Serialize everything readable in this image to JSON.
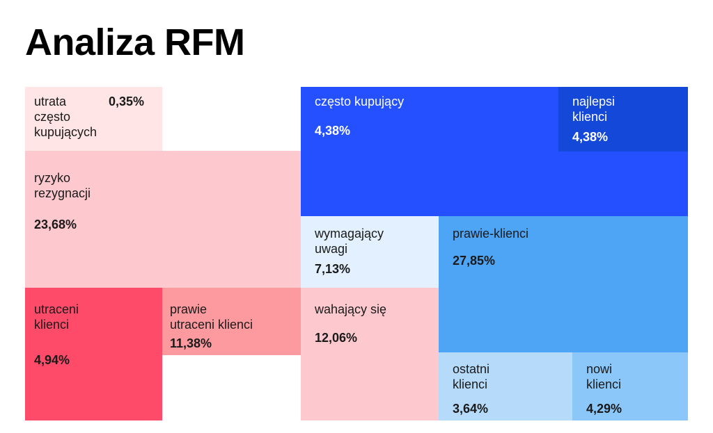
{
  "title": "Analiza RFM",
  "chart_data": {
    "type": "treemap",
    "title": "Analiza RFM",
    "items": [
      {
        "label": "utrata\nczęsto\nkupujących",
        "value": "0,35%",
        "color": "#ffe5e5"
      },
      {
        "label": "ryzyko\nrezygnacji",
        "value": "23,68%",
        "color": "#fdc8ce"
      },
      {
        "label": "utraceni\nklienci",
        "value": "4,94%",
        "color": "#fe4b69"
      },
      {
        "label": "prawie\nutraceni klienci",
        "value": "11,38%",
        "color": "#fd9aa0"
      },
      {
        "label": "często kupujący",
        "value": "4,38%",
        "color": "#2450ff"
      },
      {
        "label": "najlepsi\nklienci",
        "value": "4,38%",
        "color": "#1448d8"
      },
      {
        "label": "wymagający\nuwagi",
        "value": "7,13%",
        "color": "#e2f0ff"
      },
      {
        "label": "prawie-klienci",
        "value": "27,85%",
        "color": "#4ea5f5"
      },
      {
        "label": "wahający się",
        "value": "12,06%",
        "color": "#fdc8ce"
      },
      {
        "label": "ostatni\nklienci",
        "value": "3,64%",
        "color": "#b6dbfa"
      },
      {
        "label": "nowi\nklienci",
        "value": "4,29%",
        "color": "#8bc7f9"
      }
    ]
  }
}
